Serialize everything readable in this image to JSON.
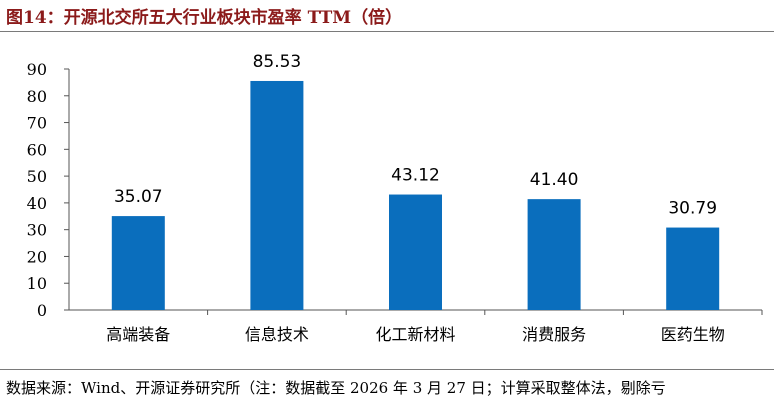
{
  "title": "图14：开源北交所五大行业板块市盈率 TTM（倍）",
  "source": "数据来源：Wind、开源证券研究所（注：数据截至 2026 年 3 月 27 日；计算采取整体法，剔除亏",
  "colors": {
    "bar": "#0A6EBD",
    "title": "#8B1A1A",
    "axis": "#555555"
  },
  "chart_data": {
    "type": "bar",
    "title": "开源北交所五大行业板块市盈率 TTM（倍）",
    "categories": [
      "高端装备",
      "信息技术",
      "化工新材料",
      "消费服务",
      "医药生物"
    ],
    "values": [
      35.07,
      85.53,
      43.12,
      41.4,
      30.79
    ],
    "value_labels": [
      "35.07",
      "85.53",
      "43.12",
      "41.40",
      "30.79"
    ],
    "yticks": [
      "0",
      "10",
      "20",
      "30",
      "40",
      "50",
      "60",
      "70",
      "80",
      "90"
    ],
    "ylim": [
      0,
      90
    ],
    "grid": false,
    "legend": "none",
    "xlabel": "",
    "ylabel": ""
  }
}
